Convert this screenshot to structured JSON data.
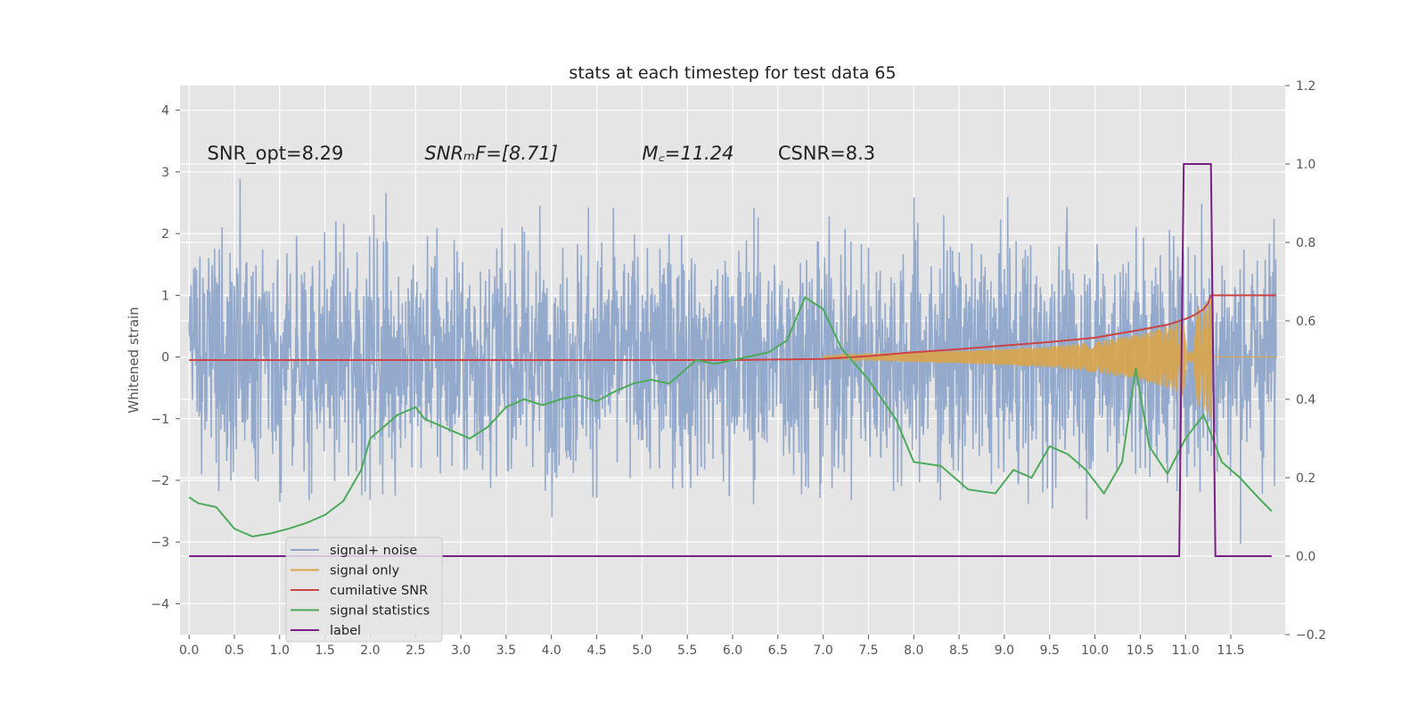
{
  "chart_data": {
    "type": "line",
    "title": "stats at each timestep for test data 65",
    "ylabel": "Whitened strain",
    "xlabel": "",
    "xlim": [
      -0.1,
      12.1
    ],
    "ylim": [
      -4.5,
      4.4
    ],
    "y2lim": [
      -0.2,
      1.2
    ],
    "grid": true,
    "legend_position": "lower-left",
    "x_ticks": [
      "0.0",
      "0.5",
      "1.0",
      "1.5",
      "2.0",
      "2.5",
      "3.0",
      "3.5",
      "4.0",
      "4.5",
      "5.0",
      "5.5",
      "6.0",
      "6.5",
      "7.0",
      "7.5",
      "8.0",
      "8.5",
      "9.0",
      "9.5",
      "10.0",
      "10.5",
      "11.0",
      "11.5"
    ],
    "y_ticks": [
      "4",
      "3",
      "2",
      "1",
      "0",
      "−1",
      "−2",
      "−3",
      "−4"
    ],
    "y2_ticks": [
      "1.2",
      "1.0",
      "0.8",
      "0.6",
      "0.4",
      "0.2",
      "0.0",
      "−0.2"
    ],
    "annotations": [
      {
        "text": "SNR_opt=8.29",
        "x": 0.2,
        "y": 3.2
      },
      {
        "text": "SNRₘF=[8.71]",
        "x": 2.6,
        "y": 3.2
      },
      {
        "text": "M꜀=11.24",
        "x": 5.0,
        "y": 3.2
      },
      {
        "text": "CSNR=8.3",
        "x": 6.5,
        "y": 3.2
      }
    ],
    "series": [
      {
        "name": "signal+ noise",
        "color": "#8fa6cb",
        "axis": "left",
        "kind": "noise",
        "x_range": [
          0,
          12
        ],
        "amplitude_std": 1.0
      },
      {
        "name": "signal only",
        "color": "#d9a54a",
        "axis": "left",
        "kind": "chirp",
        "envelope": {
          "x": [
            7.0,
            7.5,
            8.0,
            8.5,
            9.0,
            9.5,
            10.0,
            10.5,
            10.8,
            11.0,
            11.2,
            11.28
          ],
          "y": [
            0.02,
            0.05,
            0.08,
            0.1,
            0.13,
            0.17,
            0.25,
            0.37,
            0.5,
            0.65,
            0.85,
            1.0
          ]
        },
        "after_merger": {
          "x": [
            11.28,
            12.0
          ],
          "y": [
            0.0,
            0.0
          ]
        }
      },
      {
        "name": "cumilative SNR",
        "color": "#cc4444",
        "axis": "right",
        "x": [
          0.0,
          6.0,
          7.0,
          7.5,
          8.0,
          8.5,
          9.0,
          9.5,
          10.0,
          10.5,
          10.8,
          11.0,
          11.1,
          11.2,
          11.25,
          11.28,
          12.0
        ],
        "y": [
          0.5,
          0.5,
          0.503,
          0.51,
          0.52,
          0.528,
          0.537,
          0.546,
          0.557,
          0.577,
          0.59,
          0.605,
          0.615,
          0.63,
          0.645,
          0.665,
          0.665
        ]
      },
      {
        "name": "signal statistics",
        "color": "#4caa5a",
        "axis": "right",
        "x": [
          0.0,
          0.1,
          0.3,
          0.5,
          0.7,
          0.9,
          1.1,
          1.3,
          1.5,
          1.7,
          1.9,
          2.0,
          2.1,
          2.3,
          2.5,
          2.6,
          2.7,
          2.9,
          3.1,
          3.3,
          3.5,
          3.7,
          3.9,
          4.1,
          4.3,
          4.5,
          4.7,
          4.9,
          5.1,
          5.3,
          5.5,
          5.6,
          5.8,
          6.0,
          6.2,
          6.4,
          6.6,
          6.8,
          7.0,
          7.2,
          7.5,
          7.8,
          8.0,
          8.3,
          8.6,
          8.9,
          9.1,
          9.3,
          9.5,
          9.7,
          9.9,
          10.1,
          10.3,
          10.45,
          10.6,
          10.8,
          11.0,
          11.2,
          11.4,
          11.6,
          11.8,
          11.95
        ],
        "y": [
          0.15,
          0.135,
          0.125,
          0.07,
          0.05,
          0.058,
          0.07,
          0.085,
          0.105,
          0.14,
          0.22,
          0.3,
          0.32,
          0.36,
          0.38,
          0.35,
          0.34,
          0.32,
          0.3,
          0.33,
          0.38,
          0.4,
          0.385,
          0.4,
          0.41,
          0.395,
          0.42,
          0.44,
          0.45,
          0.44,
          0.48,
          0.5,
          0.49,
          0.5,
          0.51,
          0.52,
          0.55,
          0.66,
          0.63,
          0.53,
          0.45,
          0.35,
          0.24,
          0.23,
          0.17,
          0.16,
          0.22,
          0.2,
          0.28,
          0.26,
          0.22,
          0.16,
          0.24,
          0.48,
          0.28,
          0.21,
          0.3,
          0.36,
          0.24,
          0.2,
          0.15,
          0.115
        ]
      },
      {
        "name": "label",
        "color": "#7a1f86",
        "axis": "right",
        "x": [
          0.0,
          10.93,
          10.98,
          11.2,
          11.28,
          11.33,
          11.95
        ],
        "y": [
          0.0,
          0.0,
          1.0,
          1.0,
          1.0,
          0.0,
          0.0
        ]
      }
    ]
  }
}
